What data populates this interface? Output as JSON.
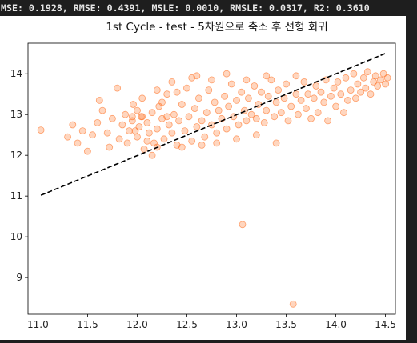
{
  "metrics_line": "MSE: 0.1928, RMSE: 0.4391, MSLE: 0.0010, RMSLE: 0.0317, R2: 0.3610",
  "chart_data": {
    "type": "scatter",
    "title": "1st Cycle - test - 5차원으로 축소 후 선형 회귀",
    "xlabel": "",
    "ylabel": "",
    "xlim": [
      10.9,
      14.6
    ],
    "ylim": [
      8.1,
      14.75
    ],
    "xticks": [
      "11.0",
      "11.5",
      "12.0",
      "12.5",
      "13.0",
      "13.5",
      "14.0",
      "14.5"
    ],
    "xtick_values": [
      11.0,
      11.5,
      12.0,
      12.5,
      13.0,
      13.5,
      14.0,
      14.5
    ],
    "yticks": [
      "9",
      "10",
      "11",
      "12",
      "13",
      "14"
    ],
    "ytick_values": [
      9,
      10,
      11,
      12,
      13,
      14
    ],
    "grid": false,
    "series": [
      {
        "kind": "points",
        "color": "#ff6a1a",
        "points": [
          [
            11.03,
            12.62
          ],
          [
            11.3,
            12.45
          ],
          [
            11.35,
            12.75
          ],
          [
            11.4,
            12.3
          ],
          [
            11.45,
            12.6
          ],
          [
            11.5,
            12.1
          ],
          [
            11.55,
            12.5
          ],
          [
            11.6,
            12.8
          ],
          [
            11.62,
            13.35
          ],
          [
            11.65,
            13.1
          ],
          [
            11.7,
            12.55
          ],
          [
            11.72,
            12.2
          ],
          [
            11.75,
            12.9
          ],
          [
            11.8,
            13.65
          ],
          [
            11.82,
            12.4
          ],
          [
            11.85,
            12.75
          ],
          [
            11.88,
            13.0
          ],
          [
            11.9,
            12.3
          ],
          [
            11.92,
            12.6
          ],
          [
            11.95,
            12.85
          ],
          [
            11.96,
            13.25
          ],
          [
            12.0,
            12.45
          ],
          [
            12.02,
            12.7
          ],
          [
            12.04,
            12.95
          ],
          [
            12.05,
            13.4
          ],
          [
            12.07,
            12.15
          ],
          [
            12.1,
            12.8
          ],
          [
            12.12,
            12.55
          ],
          [
            12.15,
            13.05
          ],
          [
            12.17,
            12.3
          ],
          [
            12.2,
            12.65
          ],
          [
            12.22,
            13.2
          ],
          [
            12.25,
            12.9
          ],
          [
            12.27,
            12.4
          ],
          [
            12.3,
            13.5
          ],
          [
            12.32,
            12.75
          ],
          [
            12.35,
            12.55
          ],
          [
            12.37,
            13.0
          ],
          [
            12.4,
            12.25
          ],
          [
            12.42,
            12.85
          ],
          [
            12.45,
            13.25
          ],
          [
            12.48,
            12.6
          ],
          [
            12.5,
            13.65
          ],
          [
            12.52,
            12.95
          ],
          [
            12.55,
            12.35
          ],
          [
            12.58,
            13.15
          ],
          [
            12.6,
            12.7
          ],
          [
            12.62,
            13.4
          ],
          [
            12.65,
            12.85
          ],
          [
            12.68,
            12.45
          ],
          [
            12.7,
            13.05
          ],
          [
            12.72,
            13.6
          ],
          [
            12.75,
            12.75
          ],
          [
            12.78,
            13.3
          ],
          [
            12.8,
            12.55
          ],
          [
            12.82,
            13.1
          ],
          [
            12.85,
            12.9
          ],
          [
            12.88,
            13.45
          ],
          [
            12.9,
            12.65
          ],
          [
            12.92,
            13.2
          ],
          [
            12.95,
            13.75
          ],
          [
            12.97,
            12.95
          ],
          [
            13.0,
            13.35
          ],
          [
            13.02,
            12.75
          ],
          [
            13.05,
            13.55
          ],
          [
            13.06,
            10.3
          ],
          [
            13.08,
            13.1
          ],
          [
            13.1,
            12.85
          ],
          [
            13.12,
            13.4
          ],
          [
            13.15,
            13.0
          ],
          [
            13.18,
            13.7
          ],
          [
            13.2,
            12.9
          ],
          [
            13.22,
            13.25
          ],
          [
            13.25,
            13.55
          ],
          [
            13.28,
            12.8
          ],
          [
            13.3,
            13.1
          ],
          [
            13.32,
            13.45
          ],
          [
            13.35,
            13.85
          ],
          [
            13.38,
            12.95
          ],
          [
            13.4,
            13.3
          ],
          [
            13.42,
            13.6
          ],
          [
            13.45,
            13.05
          ],
          [
            13.48,
            13.4
          ],
          [
            13.5,
            13.75
          ],
          [
            13.52,
            12.85
          ],
          [
            13.55,
            13.2
          ],
          [
            13.57,
            8.35
          ],
          [
            13.6,
            13.5
          ],
          [
            13.62,
            13.0
          ],
          [
            13.65,
            13.35
          ],
          [
            13.68,
            13.8
          ],
          [
            13.7,
            13.15
          ],
          [
            13.72,
            13.5
          ],
          [
            13.75,
            12.9
          ],
          [
            13.78,
            13.4
          ],
          [
            13.8,
            13.7
          ],
          [
            13.82,
            13.05
          ],
          [
            13.85,
            13.55
          ],
          [
            13.88,
            13.3
          ],
          [
            13.9,
            13.85
          ],
          [
            13.92,
            12.85
          ],
          [
            13.95,
            13.45
          ],
          [
            13.98,
            13.65
          ],
          [
            14.0,
            13.2
          ],
          [
            14.02,
            13.8
          ],
          [
            14.05,
            13.5
          ],
          [
            14.08,
            13.05
          ],
          [
            14.1,
            13.9
          ],
          [
            14.12,
            13.35
          ],
          [
            14.15,
            13.6
          ],
          [
            14.18,
            14.0
          ],
          [
            14.2,
            13.4
          ],
          [
            14.22,
            13.75
          ],
          [
            14.25,
            13.55
          ],
          [
            14.28,
            13.9
          ],
          [
            14.3,
            13.65
          ],
          [
            14.32,
            14.05
          ],
          [
            14.35,
            13.5
          ],
          [
            14.38,
            13.8
          ],
          [
            14.4,
            13.95
          ],
          [
            14.42,
            13.7
          ],
          [
            14.45,
            13.85
          ],
          [
            14.48,
            14.0
          ],
          [
            14.5,
            13.75
          ],
          [
            14.52,
            13.9
          ],
          [
            12.2,
            12.2
          ],
          [
            12.15,
            12.0
          ],
          [
            12.1,
            12.35
          ],
          [
            11.95,
            12.95
          ],
          [
            12.0,
            13.1
          ],
          [
            12.25,
            13.3
          ],
          [
            12.4,
            13.55
          ],
          [
            12.55,
            13.9
          ],
          [
            12.3,
            12.95
          ],
          [
            12.45,
            12.2
          ],
          [
            12.65,
            12.25
          ],
          [
            12.8,
            12.3
          ],
          [
            13.0,
            12.4
          ],
          [
            13.2,
            12.5
          ],
          [
            13.4,
            12.3
          ],
          [
            12.75,
            13.85
          ],
          [
            12.9,
            14.0
          ],
          [
            12.6,
            13.95
          ],
          [
            13.1,
            13.85
          ],
          [
            13.3,
            13.95
          ],
          [
            13.6,
            13.95
          ],
          [
            12.35,
            13.8
          ],
          [
            12.2,
            13.6
          ],
          [
            12.05,
            12.95
          ],
          [
            11.98,
            12.6
          ]
        ]
      },
      {
        "kind": "line",
        "style": "dashed",
        "color": "#000000",
        "x": [
          11.03,
          14.5
        ],
        "y": [
          11.02,
          14.5
        ]
      }
    ]
  }
}
